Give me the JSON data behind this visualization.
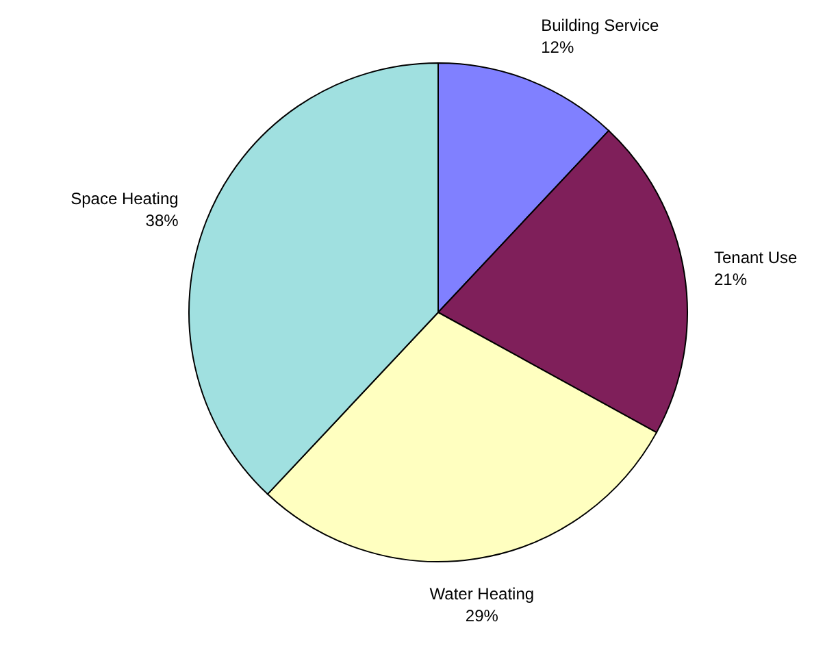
{
  "chart_data": {
    "type": "pie",
    "categories": [
      "Building Service",
      "Tenant Use",
      "Water Heating",
      "Space Heating"
    ],
    "values": [
      12,
      21,
      29,
      38
    ],
    "colors": [
      "#8080ff",
      "#7f1f5a",
      "#ffffc0",
      "#a0e0e0"
    ],
    "value_labels": [
      "12%",
      "21%",
      "29%",
      "38%"
    ]
  }
}
